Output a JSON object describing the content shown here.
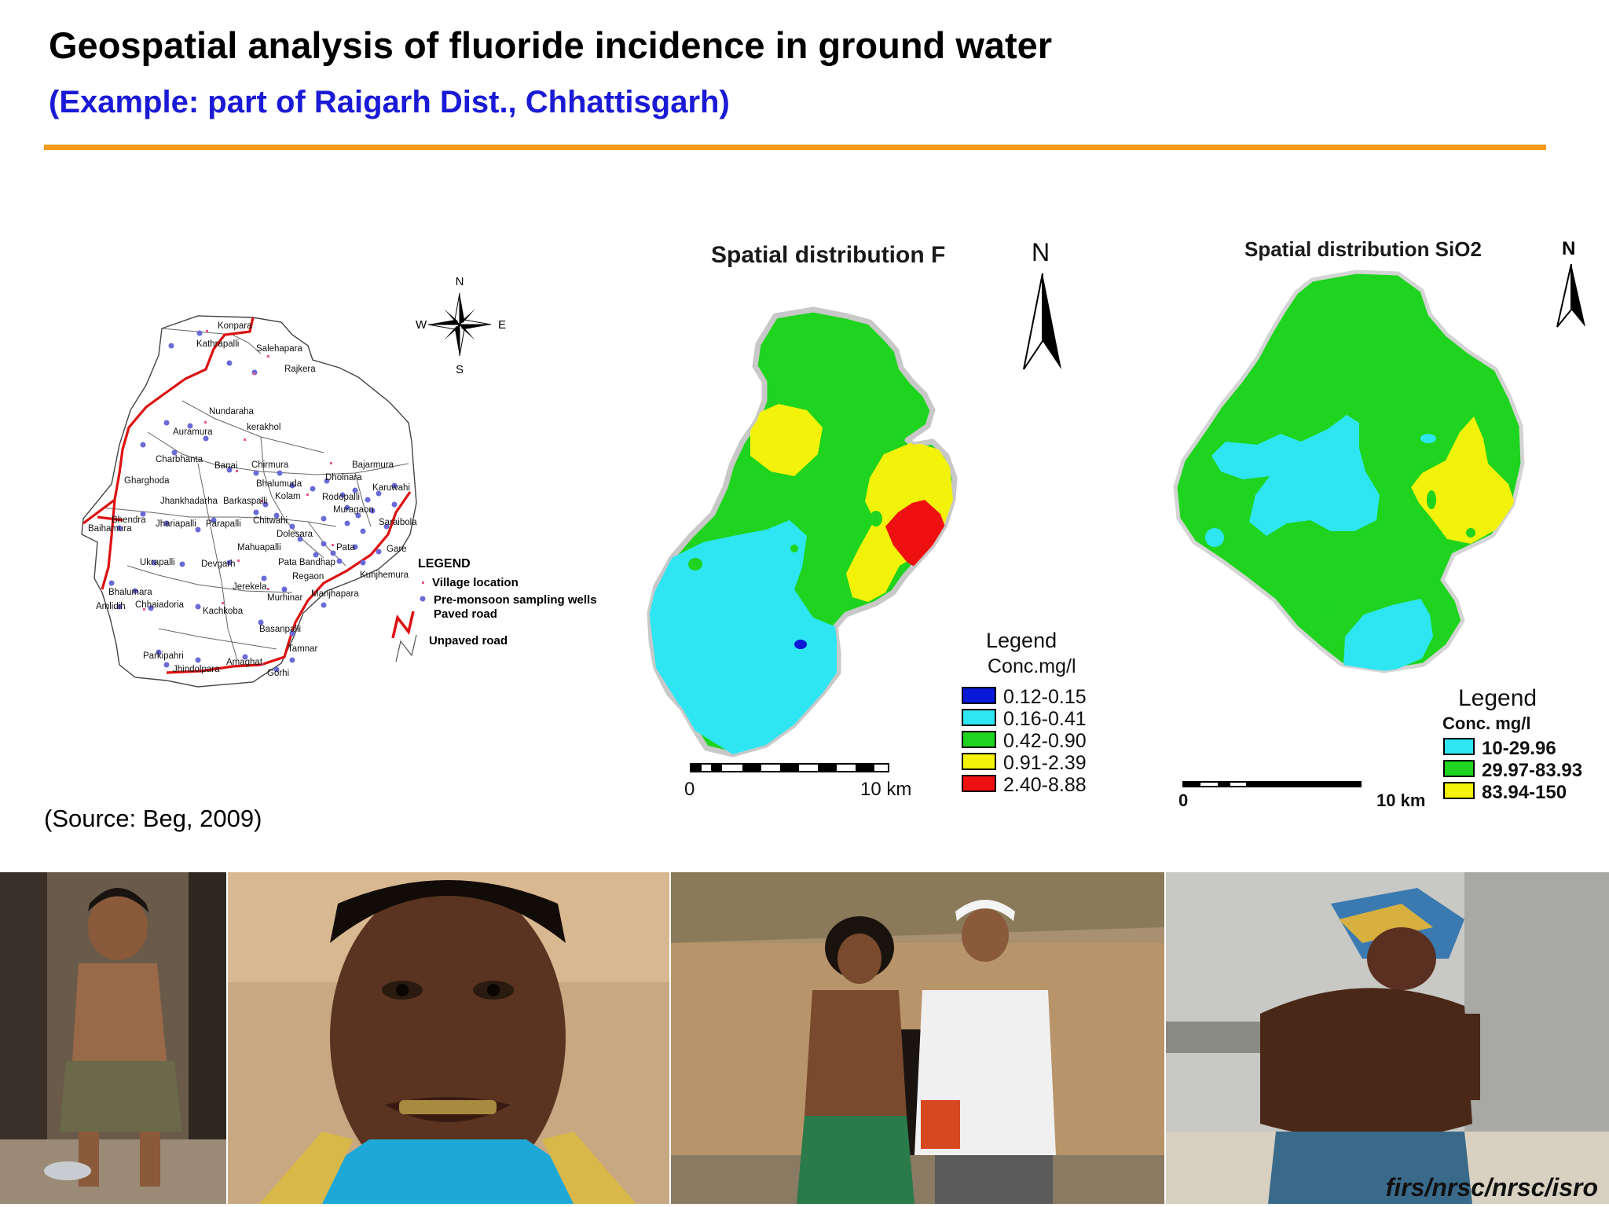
{
  "header": {
    "title": "Geospatial analysis of fluoride incidence in ground water",
    "subtitle": "(Example: part of Raigarh Dist., Chhattisgarh)"
  },
  "source": "(Source: Beg, 2009)",
  "watermark": "firs/nrsc/nrsc/isro",
  "colors": {
    "accent_rule": "#f59a1a",
    "subtitle_blue": "#1a1ad6",
    "paved_road": "#dd1111",
    "well_point": "#6a6ad8",
    "village_point": "#e85a8a"
  },
  "village_map": {
    "compass": {
      "n": "N",
      "s": "S",
      "e": "E",
      "w": "W"
    },
    "villages": [
      "Konpara",
      "Kathrapalli",
      "Salehapara",
      "Rajkera",
      "Nundaraha",
      "Auramura",
      "kerakhol",
      "Charbhanta",
      "Banai",
      "Chirmura",
      "Bajarmura",
      "Gharghoda",
      "Bhalumuda",
      "Dholnara",
      "Karuwahi",
      "Jhankhadarha",
      "Barkaspalli",
      "Kolam",
      "Rodopalli",
      "Bhendra",
      "Baihamura",
      "Jhariapalli",
      "Parapalli",
      "Chitwahi",
      "Muragaon",
      "Saraibola",
      "Dolesara",
      "Mahuapalli",
      "Pata",
      "Gare",
      "Ukrapalli",
      "Devgarh",
      "Pata Bandhap",
      "Regaon",
      "Kunjhemura",
      "Jerekela",
      "Murhinar",
      "Manjhapara",
      "Bhalumara",
      "Amlidih",
      "Chhaiadoria",
      "Kachkoba",
      "Basanpalli",
      "Tamnar",
      "Parkipahri",
      "Amaghat",
      "Jhindolpara",
      "Gorhi"
    ],
    "legend": {
      "title": "LEGEND",
      "items": [
        "Village location",
        "Pre-monsoon sampling wells",
        "Paved road",
        "Unpaved road"
      ]
    }
  },
  "fluoride_map": {
    "title": "Spatial distribution F",
    "north": "N",
    "legend_title": "Legend",
    "legend_unit": "Conc.mg/l",
    "classes": [
      {
        "range": "0.12-0.15",
        "color": "#0a18d8"
      },
      {
        "range": "0.16-0.41",
        "color": "#2ee6f2"
      },
      {
        "range": "0.42-0.90",
        "color": "#1ed41e"
      },
      {
        "range": "0.91-2.39",
        "color": "#f2f20a"
      },
      {
        "range": "2.40-8.88",
        "color": "#ee1010"
      }
    ],
    "scale": {
      "start": "0",
      "end": "10 km"
    }
  },
  "silica_map": {
    "title": "Spatial distribution SiO2",
    "north": "N",
    "legend_title": "Legend",
    "legend_unit": "Conc. mg/l",
    "classes": [
      {
        "range": "10-29.96",
        "color": "#2ee6f2"
      },
      {
        "range": "29.97-83.93",
        "color": "#1ed41e"
      },
      {
        "range": "83.94-150",
        "color": "#f2f20a"
      }
    ],
    "scale": {
      "start": "0",
      "end": "10 km"
    }
  }
}
